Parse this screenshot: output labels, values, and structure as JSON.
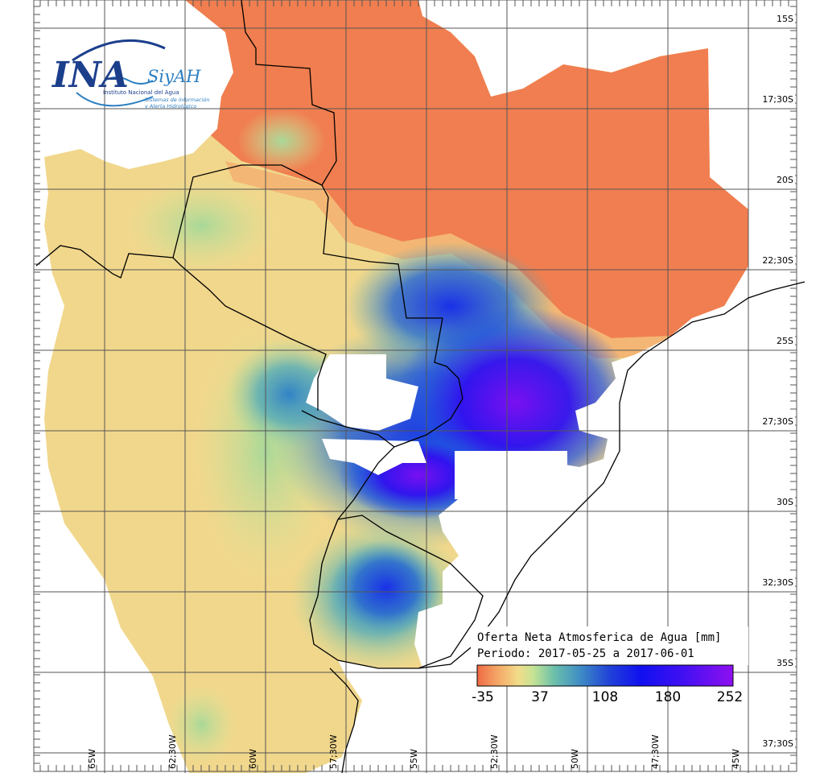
{
  "logo": {
    "name": "INA",
    "system": "SiyAH",
    "institute": "Instituto Nacional del Agua",
    "subtitle_line1": "Sistemas de información",
    "subtitle_line2": "y Alerta Hidrológico"
  },
  "legend": {
    "title_line1": "Oferta Neta Atmosferica de Agua [mm]",
    "title_line2": "Periodo: 2017-05-25 a 2017-06-01",
    "ticks": [
      "-35",
      "37",
      "108",
      "180",
      "252"
    ],
    "min": -35,
    "max": 252,
    "colors": [
      "#f06a44",
      "#f4a766",
      "#f2dc8a",
      "#e8eb94",
      "#8fd19a",
      "#3f9fc0",
      "#2d62c8",
      "#1020f0",
      "#6010f4",
      "#8e10f0"
    ]
  },
  "grid": {
    "lat_labels": [
      "15S",
      "17;30S",
      "20S",
      "22;30S",
      "25S",
      "27;30S",
      "30S",
      "32;30S",
      "35S",
      "37;30S"
    ],
    "lon_labels": [
      "65W",
      "62;30W",
      "60W",
      "57;30W",
      "55W",
      "52;30W",
      "50W",
      "47;30W",
      "45W"
    ],
    "line_color": "#555555"
  },
  "map_colors": {
    "dry": "#f07a4c",
    "low": "#f4cf88",
    "mid": "#eedd8e",
    "green": "#b4dc98",
    "teal": "#4aa4c0",
    "blue": "#2040e8",
    "violet": "#7010f0"
  }
}
